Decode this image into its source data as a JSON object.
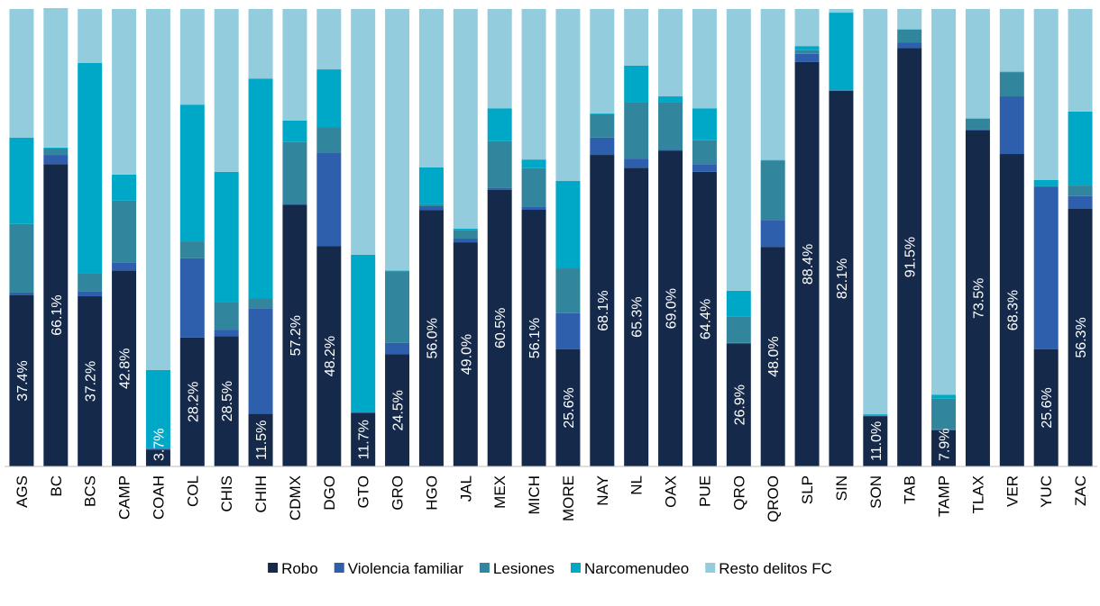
{
  "chart_data": {
    "type": "stacked_bar_100",
    "categories": [
      "AGS",
      "BC",
      "BCS",
      "CAMP",
      "COAH",
      "COL",
      "CHIS",
      "CHIH",
      "CDMX",
      "DGO",
      "GTO",
      "GRO",
      "HGO",
      "JAL",
      "MEX",
      "MICH",
      "MORE",
      "NAY",
      "NL",
      "OAX",
      "PUE",
      "QRO",
      "QROO",
      "SLP",
      "SIN",
      "SON",
      "TAB",
      "TAMP",
      "TLAX",
      "VER",
      "YUC",
      "ZAC"
    ],
    "ylim": [
      0,
      100
    ],
    "series": [
      {
        "name": "Robo",
        "color": "#15294a",
        "values": [
          37.4,
          66.1,
          37.2,
          42.8,
          3.7,
          28.2,
          28.5,
          11.5,
          57.2,
          48.2,
          11.7,
          24.5,
          56.0,
          49.0,
          60.5,
          56.1,
          25.6,
          68.1,
          65.3,
          69.0,
          64.4,
          26.9,
          48.0,
          88.4,
          82.1,
          11.0,
          91.5,
          7.9,
          73.5,
          68.3,
          25.6,
          56.3
        ],
        "value_labels": [
          "37.4%",
          "66.1%",
          "37.2%",
          "42.8%",
          "3.7%",
          "28.2%",
          "28.5%",
          "11.5%",
          "57.2%",
          "48.2%",
          "11.7%",
          "24.5%",
          "56.0%",
          "49.0%",
          "60.5%",
          "56.1%",
          "25.6%",
          "68.1%",
          "65.3%",
          "69.0%",
          "64.4%",
          "26.9%",
          "48.0%",
          "88.4%",
          "82.1%",
          "11.0%",
          "91.5%",
          "7.9%",
          "73.5%",
          "68.3%",
          "25.6%",
          "56.3%"
        ]
      },
      {
        "name": "Violencia familiar",
        "color": "#2e5fad",
        "values": [
          0.6,
          2.0,
          1.0,
          1.7,
          0.2,
          17.3,
          1.4,
          23.1,
          0.2,
          20.3,
          0.1,
          2.5,
          0.9,
          0.8,
          0.4,
          0.6,
          7.9,
          3.8,
          2.0,
          0.2,
          1.7,
          0.1,
          5.9,
          1.8,
          0.1,
          0.1,
          1.2,
          0.2,
          0.2,
          12.6,
          35.6,
          2.8
        ]
      },
      {
        "name": "Lesiones",
        "color": "#31859c",
        "values": [
          15.0,
          1.4,
          4.1,
          13.6,
          0.2,
          3.7,
          6.1,
          2.2,
          13.5,
          5.7,
          0.1,
          15.7,
          0.4,
          1.8,
          10.2,
          8.5,
          9.8,
          5.1,
          12.4,
          10.5,
          5.2,
          5.7,
          13.0,
          0.8,
          0.2,
          0.1,
          2.8,
          6.7,
          2.3,
          5.3,
          0.1,
          2.3
        ]
      },
      {
        "name": "Narcomenudeo",
        "color": "#00a8c8",
        "values": [
          18.9,
          0.2,
          45.9,
          5.7,
          17.0,
          29.9,
          28.4,
          48.0,
          4.7,
          12.6,
          34.4,
          0.1,
          8.1,
          0.4,
          7.2,
          1.9,
          19.1,
          0.2,
          7.9,
          1.2,
          7.0,
          5.7,
          0.1,
          0.9,
          16.8,
          0.2,
          0.1,
          0.9,
          0.1,
          0.1,
          1.3,
          16.2
        ]
      },
      {
        "name": "Resto delitos FC",
        "color": "#93cddd",
        "values": [
          28.1,
          30.5,
          11.8,
          36.2,
          78.9,
          20.9,
          35.6,
          15.2,
          24.4,
          13.2,
          53.7,
          57.2,
          34.6,
          48.0,
          21.7,
          32.9,
          37.6,
          22.8,
          12.4,
          19.1,
          21.7,
          61.6,
          33.0,
          8.1,
          0.8,
          88.6,
          4.4,
          84.3,
          23.9,
          13.7,
          37.4,
          22.4
        ]
      }
    ]
  }
}
